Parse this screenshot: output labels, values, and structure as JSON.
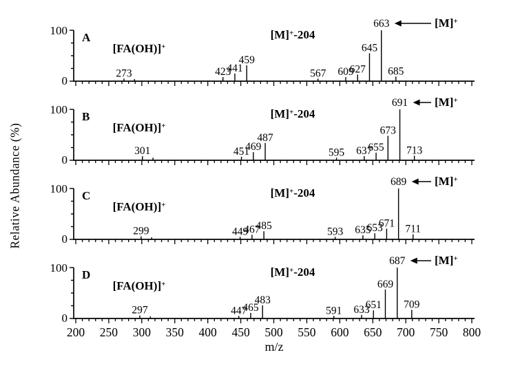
{
  "figure": {
    "kind": "mass-spectra-stacked-panels"
  },
  "chart_data": {
    "type": "bar",
    "subtype": "mass-spectrum-stick-plot",
    "title": "",
    "xlabel": "m/z",
    "ylabel": "Relative Abundance (%)",
    "xlim": [
      200,
      800
    ],
    "ylim": [
      0,
      100
    ],
    "grid": false,
    "x_major_ticks": [
      200,
      250,
      300,
      350,
      400,
      450,
      500,
      550,
      600,
      650,
      700,
      750,
      800
    ],
    "x_minor_tick_step": 10,
    "y_tick_labels": [
      "100",
      "0"
    ],
    "y_minor_tick_values": [
      0,
      25,
      50,
      75,
      100
    ],
    "panels": [
      {
        "label": "A",
        "fa_annotation": "[FA(OH)]⁺",
        "loss_annotation": "[M]⁺-204",
        "molecular_ion_annotation": "[M]⁺",
        "molecular_ion_mz": 663,
        "peaks": [
          {
            "mz": 273,
            "intensity": 5,
            "label": "273"
          },
          {
            "mz": 289,
            "intensity": 4,
            "label": ""
          },
          {
            "mz": 423,
            "intensity": 8,
            "label": "423"
          },
          {
            "mz": 441,
            "intensity": 15,
            "label": "441"
          },
          {
            "mz": 459,
            "intensity": 31,
            "label": "459"
          },
          {
            "mz": 567,
            "intensity": 5,
            "label": "567"
          },
          {
            "mz": 609,
            "intensity": 8,
            "label": "609"
          },
          {
            "mz": 627,
            "intensity": 13,
            "label": "627"
          },
          {
            "mz": 645,
            "intensity": 55,
            "label": "645"
          },
          {
            "mz": 663,
            "intensity": 100,
            "label": "663"
          },
          {
            "mz": 685,
            "intensity": 9,
            "label": "685"
          }
        ]
      },
      {
        "label": "B",
        "fa_annotation": "[FA(OH)]⁺",
        "loss_annotation": "[M]⁺-204",
        "molecular_ion_annotation": "[M]⁺",
        "molecular_ion_mz": 691,
        "peaks": [
          {
            "mz": 301,
            "intensity": 8,
            "label": "301"
          },
          {
            "mz": 317,
            "intensity": 5,
            "label": ""
          },
          {
            "mz": 451,
            "intensity": 7,
            "label": "451"
          },
          {
            "mz": 469,
            "intensity": 16,
            "label": "469"
          },
          {
            "mz": 487,
            "intensity": 34,
            "label": "487"
          },
          {
            "mz": 595,
            "intensity": 5,
            "label": "595"
          },
          {
            "mz": 637,
            "intensity": 8,
            "label": "637"
          },
          {
            "mz": 655,
            "intensity": 15,
            "label": "655"
          },
          {
            "mz": 673,
            "intensity": 48,
            "label": "673"
          },
          {
            "mz": 691,
            "intensity": 100,
            "label": "691"
          },
          {
            "mz": 713,
            "intensity": 9,
            "label": "713"
          }
        ]
      },
      {
        "label": "C",
        "fa_annotation": "[FA(OH)]⁺",
        "loss_annotation": "[M]⁺-204",
        "molecular_ion_annotation": "[M]⁺",
        "molecular_ion_mz": 689,
        "peaks": [
          {
            "mz": 299,
            "intensity": 6,
            "label": "299"
          },
          {
            "mz": 315,
            "intensity": 4,
            "label": ""
          },
          {
            "mz": 449,
            "intensity": 5,
            "label": "449"
          },
          {
            "mz": 467,
            "intensity": 9,
            "label": "467"
          },
          {
            "mz": 485,
            "intensity": 16,
            "label": "485"
          },
          {
            "mz": 593,
            "intensity": 5,
            "label": "593"
          },
          {
            "mz": 635,
            "intensity": 8,
            "label": "635"
          },
          {
            "mz": 653,
            "intensity": 12,
            "label": "653"
          },
          {
            "mz": 671,
            "intensity": 21,
            "label": "671"
          },
          {
            "mz": 689,
            "intensity": 100,
            "label": "689"
          },
          {
            "mz": 711,
            "intensity": 10,
            "label": "711"
          }
        ]
      },
      {
        "label": "D",
        "fa_annotation": "[FA(OH)]⁺",
        "loss_annotation": "[M]⁺-204",
        "molecular_ion_annotation": "[M]⁺",
        "molecular_ion_mz": 687,
        "peaks": [
          {
            "mz": 297,
            "intensity": 6,
            "label": "297"
          },
          {
            "mz": 313,
            "intensity": 4,
            "label": ""
          },
          {
            "mz": 447,
            "intensity": 5,
            "label": "447"
          },
          {
            "mz": 465,
            "intensity": 11,
            "label": "465"
          },
          {
            "mz": 483,
            "intensity": 26,
            "label": "483"
          },
          {
            "mz": 591,
            "intensity": 5,
            "label": "591"
          },
          {
            "mz": 633,
            "intensity": 7,
            "label": "633"
          },
          {
            "mz": 651,
            "intensity": 16,
            "label": "651"
          },
          {
            "mz": 669,
            "intensity": 57,
            "label": "669"
          },
          {
            "mz": 687,
            "intensity": 100,
            "label": "687"
          },
          {
            "mz": 709,
            "intensity": 17,
            "label": "709"
          }
        ]
      }
    ]
  }
}
